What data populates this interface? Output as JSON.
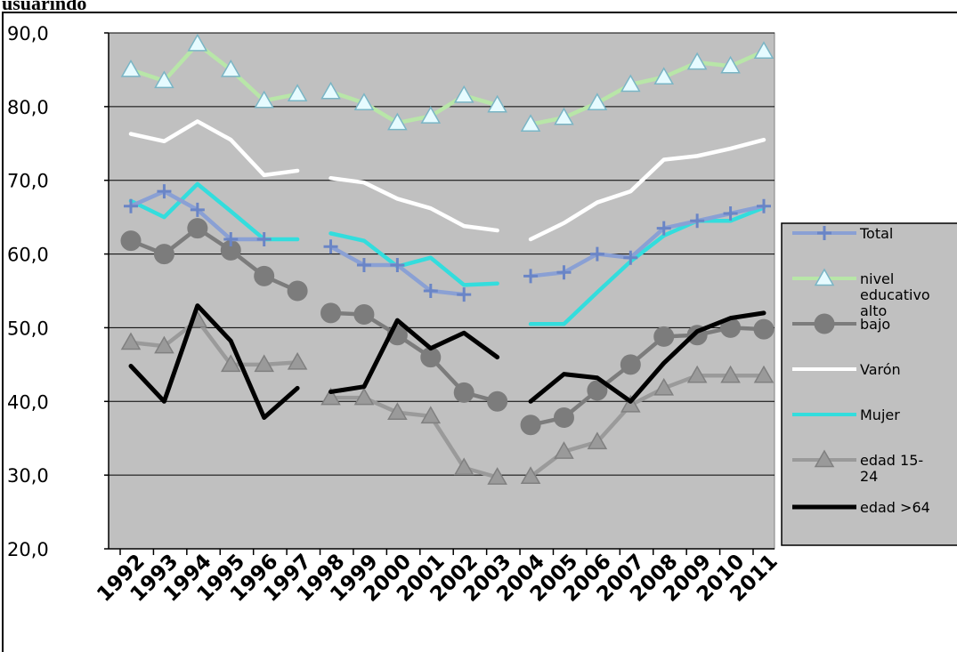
{
  "header": {
    "top_label": "usuarindo"
  },
  "chart_data": {
    "type": "line",
    "title": "",
    "xlabel": "",
    "ylabel": "",
    "ylim": [
      20,
      90
    ],
    "yticks": [
      "20,0",
      "30,0",
      "40,0",
      "50,0",
      "60,0",
      "70,0",
      "80,0",
      "90,0"
    ],
    "grid": true,
    "legend_position": "right",
    "plot_background": "#c0c0c0",
    "x": [
      1992,
      1993,
      1994,
      1995,
      1996,
      1997,
      1998,
      1999,
      2000,
      2001,
      2002,
      2003,
      2004,
      2005,
      2006,
      2007,
      2008,
      2009,
      2010,
      2011
    ],
    "x_labels": [
      "1992",
      "1993",
      "1994",
      "1995",
      "1996",
      "1997",
      "1998",
      "1999",
      "2000",
      "2001",
      "2002",
      "2003",
      "2004",
      "2005",
      "2006",
      "2007",
      "2008",
      "2009",
      "2010",
      "2011"
    ],
    "segments": [
      [
        1992,
        1997
      ],
      [
        1998,
        2003
      ],
      [
        2004,
        2011
      ]
    ],
    "series": [
      {
        "name": "Total",
        "color": "#8aa0d4",
        "marker": "plus",
        "values": [
          66.5,
          68.5,
          66,
          62,
          62,
          null,
          61,
          58.5,
          58.5,
          55,
          54.5,
          null,
          57,
          57.5,
          60,
          59.5,
          63.5,
          64.5,
          65.5,
          66.5
        ]
      },
      {
        "name": "nivel educativo alto",
        "color": "#b8e6a8",
        "marker": "triangle",
        "values": [
          85,
          83.5,
          88.5,
          85,
          80.8,
          81.7,
          82,
          80.5,
          77.8,
          78.7,
          81.5,
          80.2,
          77.6,
          78.5,
          80.5,
          83,
          84,
          86,
          85.5,
          87.5
        ]
      },
      {
        "name": "bajo",
        "color": "#7c7c7c",
        "marker": "circle",
        "values": [
          61.8,
          60,
          63.5,
          60.5,
          57,
          55,
          52,
          51.8,
          49,
          46,
          41.2,
          40,
          36.8,
          37.8,
          41.5,
          45,
          48.8,
          49,
          50,
          49.8
        ]
      },
      {
        "name": "Varón",
        "color": "#ffffff",
        "marker": "none",
        "values": [
          76.3,
          75.3,
          78,
          75.5,
          70.7,
          71.3,
          70.3,
          69.7,
          67.5,
          66.2,
          63.8,
          63.2,
          62,
          64.2,
          67,
          68.5,
          72.8,
          73.3,
          74.3,
          75.5
        ]
      },
      {
        "name": "Mujer",
        "color": "#33dddd",
        "marker": "none",
        "values": [
          67.2,
          65,
          69.5,
          65.8,
          62,
          62,
          62.8,
          61.8,
          58.3,
          59.5,
          55.8,
          56,
          50.5,
          50.5,
          54.8,
          59,
          62.5,
          64.5,
          64.5,
          66.3
        ]
      },
      {
        "name": "edad 15-24",
        "color": "#9a9a9a",
        "marker": "triangle",
        "values": [
          48,
          47.5,
          51,
          45,
          45,
          45.3,
          40.5,
          40.5,
          38.5,
          38,
          31,
          29.7,
          29.8,
          33.2,
          34.5,
          39.5,
          41.8,
          43.5,
          43.5,
          43.5
        ]
      },
      {
        "name": "edad >64",
        "color": "#000000",
        "marker": "none",
        "values": [
          44.8,
          40,
          53,
          48.2,
          37.8,
          41.8,
          41.3,
          42,
          51,
          47.2,
          49.3,
          46,
          40,
          43.7,
          43.2,
          40,
          45.2,
          49.5,
          51.3,
          52
        ]
      }
    ]
  }
}
